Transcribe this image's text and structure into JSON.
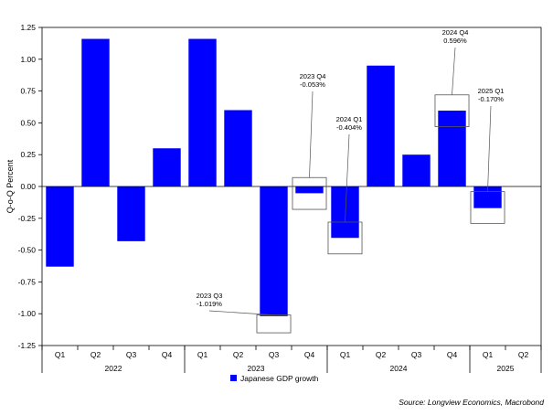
{
  "chart_data": {
    "type": "bar",
    "title": "",
    "ylabel": "Q-o-Q Percent",
    "xlabel": "",
    "ylim": [
      -1.25,
      1.25
    ],
    "yticks": [
      1.25,
      1.0,
      0.75,
      0.5,
      0.25,
      0.0,
      -0.25,
      -0.5,
      -0.75,
      -1.0,
      -1.25
    ],
    "ytick_labels": [
      "1.25",
      "1.00",
      "0.75",
      "0.50",
      "0.25",
      "0.00",
      "-0.25",
      "-0.50",
      "-0.75",
      "-1.00",
      "-1.25"
    ],
    "categories": [
      "Q1",
      "Q2",
      "Q3",
      "Q4",
      "Q1",
      "Q2",
      "Q3",
      "Q4",
      "Q1",
      "Q2",
      "Q3",
      "Q4",
      "Q1",
      "Q2"
    ],
    "years": [
      {
        "label": "2022",
        "start": 0,
        "end": 3
      },
      {
        "label": "2023",
        "start": 4,
        "end": 7
      },
      {
        "label": "2024",
        "start": 8,
        "end": 11
      },
      {
        "label": "2025",
        "start": 12,
        "end": 13
      }
    ],
    "series": [
      {
        "name": "Japanese GDP growth",
        "color": "#0000ff",
        "values": [
          -0.63,
          1.16,
          -0.43,
          0.3,
          1.16,
          0.6,
          -1.019,
          -0.053,
          -0.404,
          0.95,
          0.25,
          0.596,
          -0.17,
          null
        ]
      }
    ],
    "annotations": [
      {
        "index": 6,
        "value": -1.019,
        "line1": "2023 Q3",
        "line2": "-1.019%",
        "box": [
          -1.15,
          -1.01
        ]
      },
      {
        "index": 7,
        "value": -0.053,
        "line1": "2023 Q4",
        "line2": "-0.053%",
        "box": [
          -0.18,
          0.07
        ]
      },
      {
        "index": 8,
        "value": -0.404,
        "line1": "2024 Q1",
        "line2": "-0.404%",
        "box": [
          -0.53,
          -0.28
        ]
      },
      {
        "index": 11,
        "value": 0.596,
        "line1": "2024 Q4",
        "line2": "0.596%",
        "box": [
          0.47,
          0.72
        ]
      },
      {
        "index": 12,
        "value": -0.17,
        "line1": "2025 Q1",
        "line2": "-0.170%",
        "box": [
          -0.29,
          -0.04
        ]
      }
    ],
    "legend": {
      "position": "bottom-center"
    },
    "grid": false
  },
  "source": "Source: Longview Economics, Macrobond"
}
